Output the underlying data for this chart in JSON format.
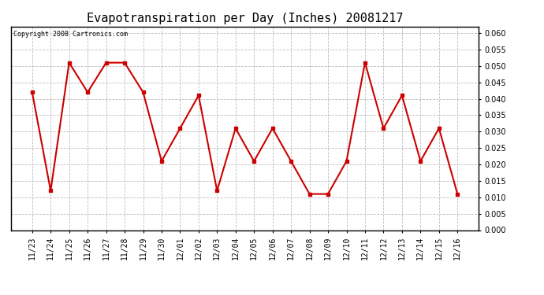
{
  "title": "Evapotranspiration per Day (Inches) 20081217",
  "copyright_text": "Copyright 2008 Cartronics.com",
  "x_labels": [
    "11/23",
    "11/24",
    "11/25",
    "11/26",
    "11/27",
    "11/28",
    "11/29",
    "11/30",
    "12/01",
    "12/02",
    "12/03",
    "12/04",
    "12/05",
    "12/06",
    "12/07",
    "12/08",
    "12/09",
    "12/10",
    "12/11",
    "12/12",
    "12/13",
    "12/14",
    "12/15",
    "12/16"
  ],
  "y_values": [
    0.042,
    0.012,
    0.051,
    0.042,
    0.051,
    0.051,
    0.042,
    0.021,
    0.031,
    0.041,
    0.012,
    0.031,
    0.021,
    0.031,
    0.021,
    0.011,
    0.011,
    0.021,
    0.051,
    0.031,
    0.041,
    0.021,
    0.031,
    0.011
  ],
  "line_color": "#cc0000",
  "marker": "s",
  "marker_size": 3,
  "ylim": [
    0.0,
    0.062
  ],
  "yticks": [
    0.0,
    0.005,
    0.01,
    0.015,
    0.02,
    0.025,
    0.03,
    0.035,
    0.04,
    0.045,
    0.05,
    0.055,
    0.06
  ],
  "grid_color": "#bbbbbb",
  "background_color": "#ffffff",
  "title_fontsize": 11,
  "copyright_fontsize": 6,
  "tick_fontsize": 7,
  "fig_width": 6.9,
  "fig_height": 3.75,
  "dpi": 100
}
